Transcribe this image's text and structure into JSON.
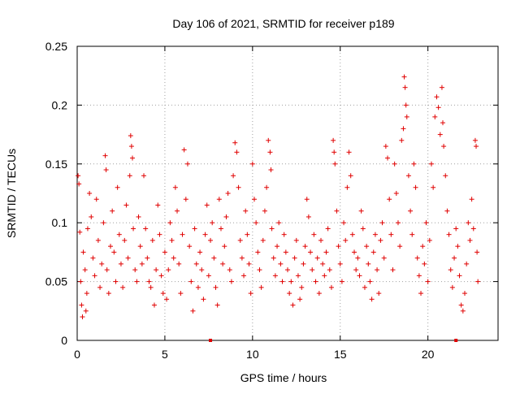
{
  "chart_data": {
    "type": "scatter",
    "title": "Day 106 of 2021, SRMTID for receiver p189",
    "xlabel": "GPS time / hours",
    "ylabel": "SRMTID / TECUs",
    "xlim": [
      0,
      24
    ],
    "ylim": [
      0,
      0.25
    ],
    "x_ticks": [
      0,
      5,
      10,
      15,
      20
    ],
    "x_tick_labels": [
      "0",
      "5",
      "10",
      "15",
      "20"
    ],
    "y_ticks": [
      0,
      0.05,
      0.1,
      0.15,
      0.2,
      0.25
    ],
    "y_tick_labels": [
      "0",
      "0.05",
      "0.1",
      "0.15",
      "0.2",
      "0.25"
    ],
    "grid": true,
    "marker": "+",
    "color": "#e00000",
    "series": [
      {
        "name": "SRMTID",
        "points": [
          [
            0.05,
            0.14
          ],
          [
            0.1,
            0.133
          ],
          [
            0.15,
            0.092
          ],
          [
            0.2,
            0.05
          ],
          [
            0.25,
            0.03
          ],
          [
            0.3,
            0.02
          ],
          [
            0.35,
            0.075
          ],
          [
            0.45,
            0.06
          ],
          [
            0.5,
            0.025
          ],
          [
            0.55,
            0.04
          ],
          [
            0.6,
            0.095
          ],
          [
            0.7,
            0.125
          ],
          [
            0.8,
            0.105
          ],
          [
            0.9,
            0.07
          ],
          [
            1.0,
            0.055
          ],
          [
            1.1,
            0.12
          ],
          [
            1.2,
            0.085
          ],
          [
            1.3,
            0.045
          ],
          [
            1.4,
            0.065
          ],
          [
            1.5,
            0.1
          ],
          [
            1.6,
            0.157
          ],
          [
            1.65,
            0.145
          ],
          [
            1.7,
            0.06
          ],
          [
            1.8,
            0.04
          ],
          [
            1.9,
            0.08
          ],
          [
            2.0,
            0.11
          ],
          [
            2.1,
            0.075
          ],
          [
            2.2,
            0.05
          ],
          [
            2.3,
            0.13
          ],
          [
            2.4,
            0.09
          ],
          [
            2.5,
            0.065
          ],
          [
            2.6,
            0.045
          ],
          [
            2.7,
            0.085
          ],
          [
            2.8,
            0.115
          ],
          [
            2.9,
            0.07
          ],
          [
            3.0,
            0.14
          ],
          [
            3.05,
            0.174
          ],
          [
            3.1,
            0.165
          ],
          [
            3.15,
            0.155
          ],
          [
            3.2,
            0.095
          ],
          [
            3.3,
            0.06
          ],
          [
            3.4,
            0.05
          ],
          [
            3.5,
            0.105
          ],
          [
            3.6,
            0.08
          ],
          [
            3.7,
            0.065
          ],
          [
            3.8,
            0.14
          ],
          [
            3.9,
            0.095
          ],
          [
            4.0,
            0.07
          ],
          [
            4.1,
            0.05
          ],
          [
            4.2,
            0.045
          ],
          [
            4.3,
            0.085
          ],
          [
            4.4,
            0.03
          ],
          [
            4.5,
            0.06
          ],
          [
            4.6,
            0.115
          ],
          [
            4.7,
            0.09
          ],
          [
            4.8,
            0.055
          ],
          [
            4.9,
            0.04
          ],
          [
            5.0,
            0.075
          ],
          [
            5.1,
            0.035
          ],
          [
            5.2,
            0.06
          ],
          [
            5.3,
            0.1
          ],
          [
            5.4,
            0.085
          ],
          [
            5.5,
            0.07
          ],
          [
            5.6,
            0.13
          ],
          [
            5.7,
            0.11
          ],
          [
            5.8,
            0.065
          ],
          [
            5.9,
            0.04
          ],
          [
            6.0,
            0.09
          ],
          [
            6.1,
            0.162
          ],
          [
            6.2,
            0.12
          ],
          [
            6.3,
            0.15
          ],
          [
            6.4,
            0.08
          ],
          [
            6.5,
            0.05
          ],
          [
            6.6,
            0.025
          ],
          [
            6.7,
            0.095
          ],
          [
            6.8,
            0.065
          ],
          [
            6.9,
            0.045
          ],
          [
            7.0,
            0.075
          ],
          [
            7.1,
            0.06
          ],
          [
            7.2,
            0.035
          ],
          [
            7.3,
            0.09
          ],
          [
            7.4,
            0.115
          ],
          [
            7.5,
            0.055
          ],
          [
            7.6,
            0.085
          ],
          [
            7.7,
            0.1
          ],
          [
            7.8,
            0.07
          ],
          [
            7.9,
            0.045
          ],
          [
            8.0,
            0.03
          ],
          [
            8.1,
            0.12
          ],
          [
            8.2,
            0.095
          ],
          [
            8.3,
            0.065
          ],
          [
            8.4,
            0.08
          ],
          [
            8.5,
            0.105
          ],
          [
            8.6,
            0.125
          ],
          [
            8.7,
            0.06
          ],
          [
            8.8,
            0.05
          ],
          [
            8.9,
            0.14
          ],
          [
            9.0,
            0.168
          ],
          [
            9.1,
            0.16
          ],
          [
            9.2,
            0.13
          ],
          [
            9.3,
            0.085
          ],
          [
            9.4,
            0.07
          ],
          [
            9.5,
            0.055
          ],
          [
            9.6,
            0.11
          ],
          [
            9.7,
            0.09
          ],
          [
            9.8,
            0.065
          ],
          [
            9.9,
            0.04
          ],
          [
            10.0,
            0.15
          ],
          [
            10.1,
            0.12
          ],
          [
            10.2,
            0.1
          ],
          [
            10.3,
            0.075
          ],
          [
            10.4,
            0.06
          ],
          [
            10.5,
            0.045
          ],
          [
            10.6,
            0.085
          ],
          [
            10.7,
            0.11
          ],
          [
            10.8,
            0.13
          ],
          [
            10.9,
            0.17
          ],
          [
            11.0,
            0.16
          ],
          [
            11.05,
            0.145
          ],
          [
            11.1,
            0.095
          ],
          [
            11.2,
            0.07
          ],
          [
            11.3,
            0.055
          ],
          [
            11.4,
            0.08
          ],
          [
            11.5,
            0.1
          ],
          [
            11.6,
            0.065
          ],
          [
            11.7,
            0.05
          ],
          [
            11.8,
            0.09
          ],
          [
            11.9,
            0.075
          ],
          [
            12.0,
            0.06
          ],
          [
            12.1,
            0.04
          ],
          [
            12.2,
            0.05
          ],
          [
            12.3,
            0.03
          ],
          [
            12.4,
            0.07
          ],
          [
            12.5,
            0.085
          ],
          [
            12.6,
            0.055
          ],
          [
            12.7,
            0.035
          ],
          [
            12.8,
            0.045
          ],
          [
            12.9,
            0.065
          ],
          [
            13.0,
            0.08
          ],
          [
            13.1,
            0.12
          ],
          [
            13.2,
            0.105
          ],
          [
            13.3,
            0.075
          ],
          [
            13.4,
            0.06
          ],
          [
            13.5,
            0.09
          ],
          [
            13.6,
            0.05
          ],
          [
            13.7,
            0.07
          ],
          [
            13.8,
            0.04
          ],
          [
            13.9,
            0.085
          ],
          [
            14.0,
            0.065
          ],
          [
            14.1,
            0.055
          ],
          [
            14.2,
            0.075
          ],
          [
            14.3,
            0.095
          ],
          [
            14.4,
            0.06
          ],
          [
            14.5,
            0.045
          ],
          [
            14.6,
            0.17
          ],
          [
            14.65,
            0.16
          ],
          [
            14.7,
            0.15
          ],
          [
            14.8,
            0.11
          ],
          [
            14.9,
            0.08
          ],
          [
            15.0,
            0.065
          ],
          [
            15.1,
            0.05
          ],
          [
            15.2,
            0.1
          ],
          [
            15.3,
            0.085
          ],
          [
            15.4,
            0.13
          ],
          [
            15.5,
            0.16
          ],
          [
            15.6,
            0.14
          ],
          [
            15.7,
            0.09
          ],
          [
            15.8,
            0.075
          ],
          [
            15.9,
            0.06
          ],
          [
            16.0,
            0.07
          ],
          [
            16.1,
            0.055
          ],
          [
            16.2,
            0.11
          ],
          [
            16.3,
            0.095
          ],
          [
            16.4,
            0.045
          ],
          [
            16.5,
            0.08
          ],
          [
            16.6,
            0.065
          ],
          [
            16.7,
            0.05
          ],
          [
            16.8,
            0.035
          ],
          [
            16.9,
            0.075
          ],
          [
            17.0,
            0.09
          ],
          [
            17.1,
            0.06
          ],
          [
            17.2,
            0.04
          ],
          [
            17.3,
            0.085
          ],
          [
            17.4,
            0.1
          ],
          [
            17.5,
            0.07
          ],
          [
            17.6,
            0.165
          ],
          [
            17.7,
            0.155
          ],
          [
            17.8,
            0.12
          ],
          [
            17.9,
            0.09
          ],
          [
            18.0,
            0.06
          ],
          [
            18.1,
            0.15
          ],
          [
            18.2,
            0.125
          ],
          [
            18.3,
            0.1
          ],
          [
            18.4,
            0.08
          ],
          [
            18.5,
            0.17
          ],
          [
            18.6,
            0.18
          ],
          [
            18.65,
            0.224
          ],
          [
            18.7,
            0.215
          ],
          [
            18.75,
            0.2
          ],
          [
            18.8,
            0.19
          ],
          [
            18.9,
            0.14
          ],
          [
            19.0,
            0.11
          ],
          [
            19.1,
            0.09
          ],
          [
            19.2,
            0.15
          ],
          [
            19.3,
            0.13
          ],
          [
            19.4,
            0.07
          ],
          [
            19.5,
            0.055
          ],
          [
            19.6,
            0.04
          ],
          [
            19.7,
            0.08
          ],
          [
            19.8,
            0.065
          ],
          [
            19.9,
            0.1
          ],
          [
            20.0,
            0.05
          ],
          [
            20.1,
            0.085
          ],
          [
            20.2,
            0.15
          ],
          [
            20.3,
            0.13
          ],
          [
            20.4,
            0.19
          ],
          [
            20.5,
            0.207
          ],
          [
            20.6,
            0.198
          ],
          [
            20.7,
            0.175
          ],
          [
            20.8,
            0.215
          ],
          [
            20.85,
            0.185
          ],
          [
            20.9,
            0.165
          ],
          [
            21.0,
            0.14
          ],
          [
            21.1,
            0.11
          ],
          [
            21.2,
            0.09
          ],
          [
            21.3,
            0.06
          ],
          [
            21.4,
            0.045
          ],
          [
            21.5,
            0.07
          ],
          [
            21.6,
            0.095
          ],
          [
            21.7,
            0.08
          ],
          [
            21.8,
            0.055
          ],
          [
            21.9,
            0.03
          ],
          [
            22.0,
            0.025
          ],
          [
            22.1,
            0.04
          ],
          [
            22.2,
            0.065
          ],
          [
            22.3,
            0.1
          ],
          [
            22.4,
            0.085
          ],
          [
            22.5,
            0.12
          ],
          [
            22.6,
            0.095
          ],
          [
            22.7,
            0.17
          ],
          [
            22.75,
            0.165
          ],
          [
            22.8,
            0.075
          ],
          [
            22.85,
            0.05
          ]
        ]
      }
    ],
    "x_axis_marks": [
      {
        "x": 7.6,
        "y": 0
      },
      {
        "x": 21.6,
        "y": 0
      }
    ]
  }
}
